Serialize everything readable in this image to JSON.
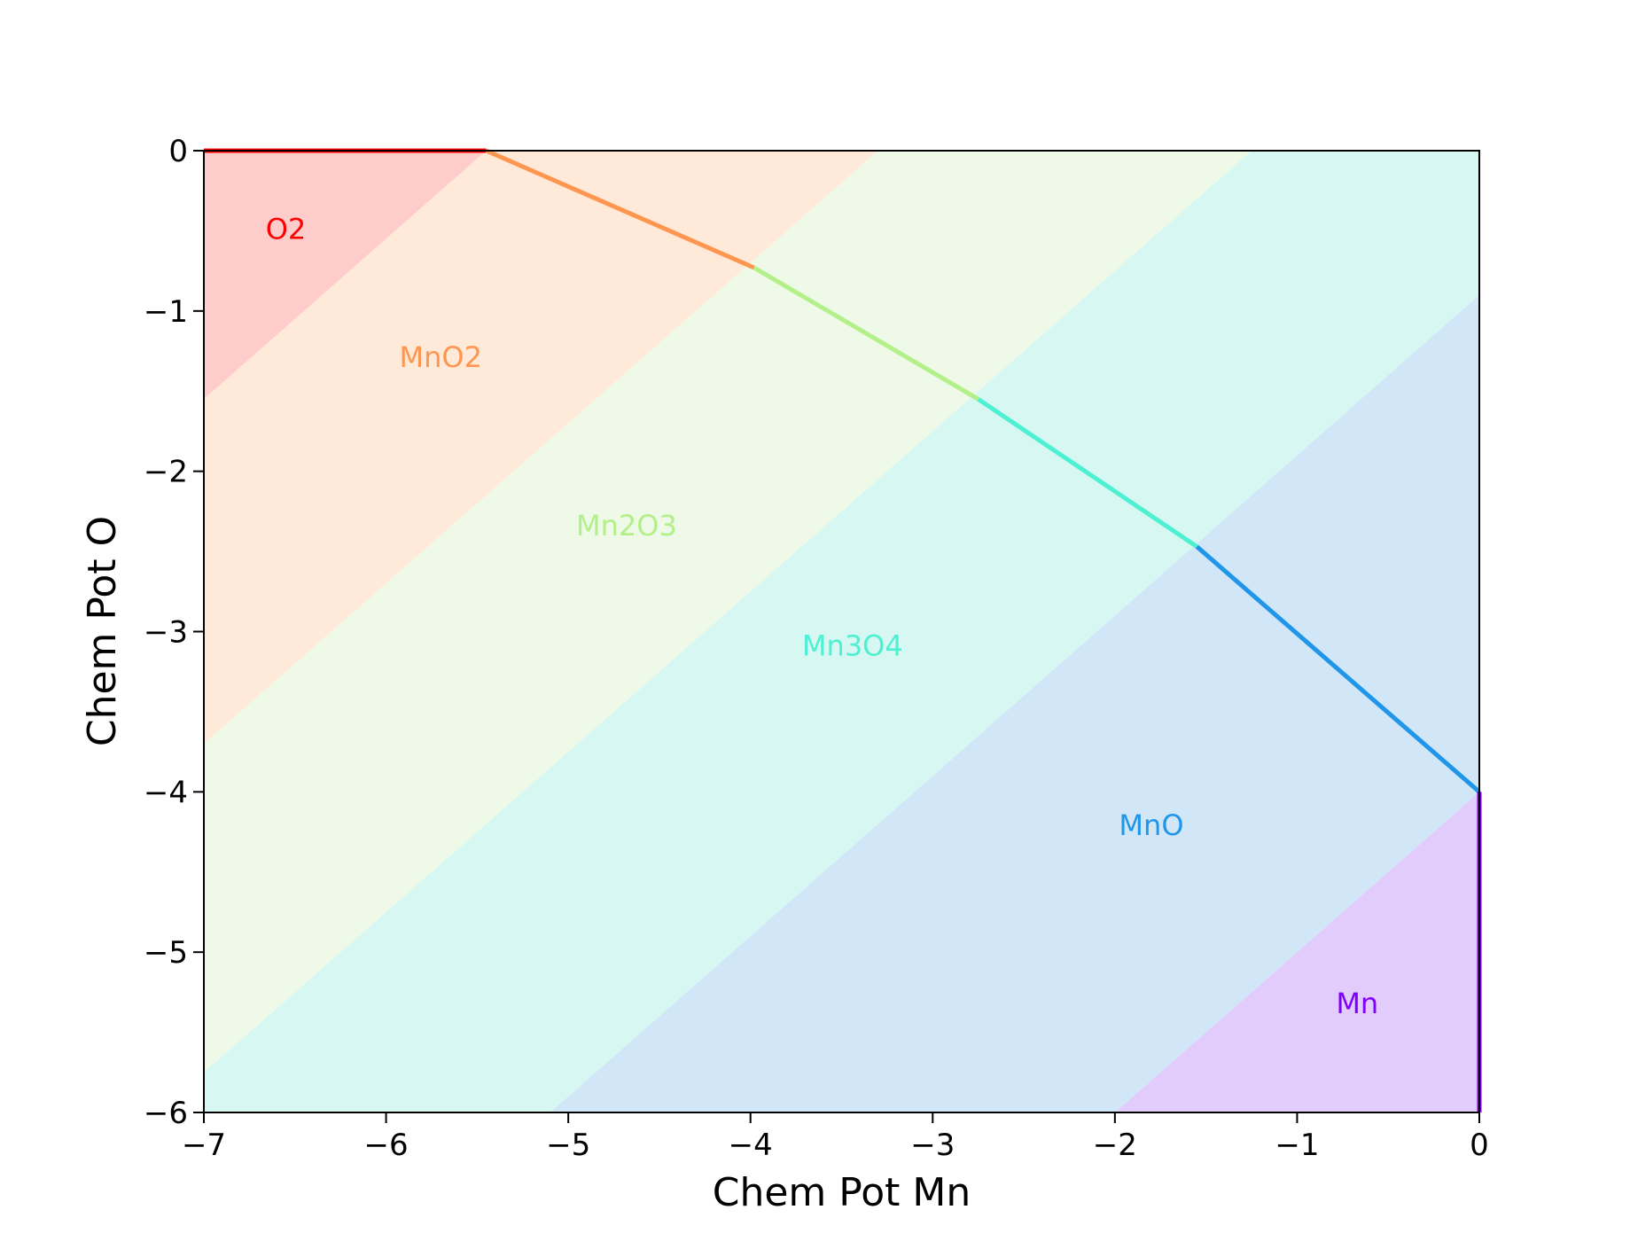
{
  "chart_data": {
    "type": "area",
    "xlabel": "Chem Pot Mn",
    "ylabel": "Chem Pot O",
    "xlim": [
      -7,
      0
    ],
    "ylim": [
      -6,
      0
    ],
    "xticks": [
      -7,
      -6,
      -5,
      -4,
      -3,
      -2,
      -1,
      0
    ],
    "yticks": [
      0,
      -1,
      -2,
      -3,
      -4,
      -5,
      -6
    ],
    "x_tick_labels": [
      "−7",
      "−6",
      "−5",
      "−4",
      "−3",
      "−2",
      "−1",
      "0"
    ],
    "y_tick_labels": [
      "0",
      "−1",
      "−2",
      "−3",
      "−4",
      "−5",
      "−6"
    ],
    "grid": false,
    "legend": "none",
    "phases": [
      {
        "name": "O2",
        "label": "O2",
        "color": "#ff0000",
        "fill": "#ffcccc",
        "label_pos": [
          -6.55,
          -0.5
        ],
        "boundary": [
          [
            -7,
            0
          ],
          [
            -5.45,
            0
          ]
        ],
        "region": [
          [
            -7,
            0
          ],
          [
            -5.45,
            0
          ],
          [
            -7,
            -1.55
          ]
        ]
      },
      {
        "name": "MnO2",
        "label": "MnO2",
        "color": "#ff9650",
        "fill": "#ffead9",
        "label_pos": [
          -5.7,
          -1.3
        ],
        "boundary": [
          [
            -5.45,
            0
          ],
          [
            -3.98,
            -0.73
          ]
        ],
        "region": [
          [
            -5.45,
            0
          ],
          [
            -3.3,
            0
          ],
          [
            -7,
            -3.7
          ],
          [
            -7,
            -1.55
          ]
        ]
      },
      {
        "name": "Mn2O3",
        "label": "Mn2O3",
        "color": "#b3f08a",
        "fill": "#eff9e7",
        "label_pos": [
          -4.68,
          -2.35
        ],
        "boundary": [
          [
            -3.98,
            -0.73
          ],
          [
            -2.75,
            -1.55
          ]
        ],
        "region": [
          [
            -3.3,
            0
          ],
          [
            -1.25,
            0
          ],
          [
            -7,
            -5.75
          ],
          [
            -7,
            -3.7
          ]
        ]
      },
      {
        "name": "Mn3O4",
        "label": "Mn3O4",
        "color": "#4ef0d2",
        "fill": "#d7f8f2",
        "label_pos": [
          -3.44,
          -3.1
        ],
        "boundary": [
          [
            -2.75,
            -1.55
          ],
          [
            -1.55,
            -2.47
          ]
        ],
        "region": [
          [
            -1.25,
            0
          ],
          [
            0,
            0
          ],
          [
            0,
            -0.9
          ],
          [
            -5.1,
            -6
          ],
          [
            -7,
            -6
          ],
          [
            -7,
            -5.75
          ]
        ]
      },
      {
        "name": "MnO",
        "label": "MnO",
        "color": "#2196e8",
        "fill": "#d1e7f8",
        "label_pos": [
          -1.8,
          -4.22
        ],
        "boundary": [
          [
            -1.55,
            -2.47
          ],
          [
            0,
            -4.0
          ]
        ],
        "region": [
          [
            0,
            -0.9
          ],
          [
            0,
            -4.0
          ],
          [
            -2.0,
            -6
          ],
          [
            -5.1,
            -6
          ]
        ]
      },
      {
        "name": "Mn",
        "label": "Mn",
        "color": "#8000ff",
        "fill": "#e2ccfb",
        "label_pos": [
          -0.67,
          -5.33
        ],
        "boundary": [
          [
            0,
            -4.0
          ],
          [
            0,
            -6
          ]
        ],
        "region": [
          [
            0,
            -4.0
          ],
          [
            0,
            -6
          ],
          [
            -2.0,
            -6
          ]
        ]
      }
    ]
  }
}
